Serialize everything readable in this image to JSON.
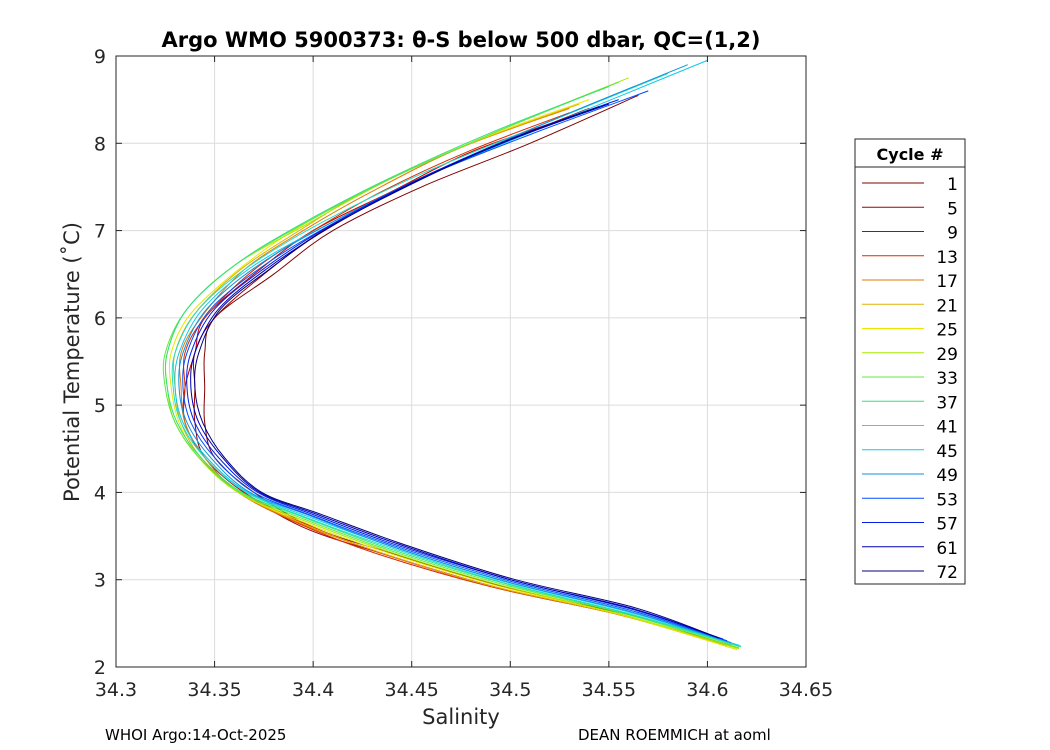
{
  "chart_data": {
    "type": "line",
    "title": "Argo WMO 5900373: θ-S below 500 dbar,  QC=(1,2)",
    "xlabel": "Salinity",
    "ylabel": "Potential Temperature (˚C)",
    "xlim": [
      34.3,
      34.65
    ],
    "ylim": [
      2,
      9
    ],
    "xticks": [
      34.3,
      34.35,
      34.4,
      34.45,
      34.5,
      34.55,
      34.6,
      34.65
    ],
    "xtick_labels": [
      "34.3",
      "34.35",
      "34.4",
      "34.45",
      "34.5",
      "34.55",
      "34.6",
      "34.65"
    ],
    "yticks": [
      2,
      3,
      4,
      5,
      6,
      7,
      8,
      9
    ],
    "ytick_labels": [
      "2",
      "3",
      "4",
      "5",
      "6",
      "7",
      "8",
      "9"
    ],
    "grid": true,
    "legend_title": "Cycle #",
    "legend_placement": "right",
    "series": [
      {
        "name": "1",
        "color": "#800000",
        "points": [
          [
            34.565,
            8.55
          ],
          [
            34.51,
            8.0
          ],
          [
            34.455,
            7.5
          ],
          [
            34.41,
            7.0
          ],
          [
            34.38,
            6.5
          ],
          [
            34.35,
            6.0
          ],
          [
            34.345,
            5.6
          ],
          [
            34.345,
            5.2
          ],
          [
            34.345,
            4.8
          ],
          [
            34.35,
            4.4
          ],
          [
            34.37,
            4.0
          ],
          [
            34.4,
            3.6
          ],
          [
            34.44,
            3.3
          ],
          [
            34.5,
            2.9
          ],
          [
            34.56,
            2.6
          ],
          [
            34.61,
            2.3
          ]
        ]
      },
      {
        "name": "5",
        "color": "#9e0000",
        "points": [
          [
            34.54,
            8.4
          ],
          [
            34.49,
            7.95
          ],
          [
            34.445,
            7.5
          ],
          [
            34.405,
            7.0
          ],
          [
            34.375,
            6.5
          ],
          [
            34.35,
            6.0
          ],
          [
            34.34,
            5.6
          ],
          [
            34.34,
            5.2
          ],
          [
            34.34,
            4.8
          ],
          [
            34.345,
            4.4
          ],
          [
            34.365,
            4.0
          ],
          [
            34.395,
            3.6
          ],
          [
            34.435,
            3.3
          ],
          [
            34.495,
            2.9
          ],
          [
            34.555,
            2.6
          ],
          [
            34.612,
            2.25
          ]
        ]
      },
      {
        "name": "9",
        "color": "#c40000",
        "points": [
          [
            34.53,
            8.3
          ],
          [
            34.48,
            7.9
          ],
          [
            34.44,
            7.45
          ],
          [
            34.4,
            7.0
          ],
          [
            34.37,
            6.5
          ],
          [
            34.345,
            6.0
          ],
          [
            34.34,
            5.6
          ],
          [
            34.335,
            5.2
          ],
          [
            34.335,
            4.8
          ],
          [
            34.345,
            4.4
          ],
          [
            34.365,
            4.0
          ],
          [
            34.395,
            3.65
          ],
          [
            34.435,
            3.3
          ],
          [
            34.495,
            2.9
          ],
          [
            34.555,
            2.6
          ],
          [
            34.61,
            2.25
          ]
        ]
      },
      {
        "name": "13",
        "color": "#dc2a00",
        "points": [
          [
            34.53,
            8.35
          ],
          [
            34.48,
            7.92
          ],
          [
            34.435,
            7.45
          ],
          [
            34.4,
            7.0
          ],
          [
            34.37,
            6.55
          ],
          [
            34.345,
            6.0
          ],
          [
            34.335,
            5.6
          ],
          [
            34.335,
            5.2
          ],
          [
            34.335,
            4.8
          ],
          [
            34.345,
            4.4
          ],
          [
            34.362,
            4.0
          ],
          [
            34.392,
            3.65
          ],
          [
            34.432,
            3.3
          ],
          [
            34.49,
            2.92
          ],
          [
            34.555,
            2.6
          ],
          [
            34.612,
            2.24
          ]
        ]
      },
      {
        "name": "17",
        "color": "#e07a00",
        "points": [
          [
            34.53,
            8.4
          ],
          [
            34.475,
            7.95
          ],
          [
            34.43,
            7.45
          ],
          [
            34.395,
            7.0
          ],
          [
            34.365,
            6.55
          ],
          [
            34.343,
            6.0
          ],
          [
            34.333,
            5.6
          ],
          [
            34.333,
            5.2
          ],
          [
            34.335,
            4.8
          ],
          [
            34.345,
            4.4
          ],
          [
            34.362,
            4.0
          ],
          [
            34.393,
            3.65
          ],
          [
            34.433,
            3.32
          ],
          [
            34.49,
            2.93
          ],
          [
            34.555,
            2.6
          ],
          [
            34.615,
            2.22
          ]
        ]
      },
      {
        "name": "21",
        "color": "#e0b000",
        "points": [
          [
            34.535,
            8.45
          ],
          [
            34.48,
            8.0
          ],
          [
            34.43,
            7.5
          ],
          [
            34.393,
            7.0
          ],
          [
            34.363,
            6.55
          ],
          [
            34.34,
            6.05
          ],
          [
            34.33,
            5.6
          ],
          [
            34.33,
            5.2
          ],
          [
            34.333,
            4.8
          ],
          [
            34.343,
            4.4
          ],
          [
            34.362,
            4.0
          ],
          [
            34.393,
            3.66
          ],
          [
            34.433,
            3.32
          ],
          [
            34.49,
            2.93
          ],
          [
            34.555,
            2.6
          ],
          [
            34.615,
            2.2
          ]
        ]
      },
      {
        "name": "25",
        "color": "#e8e800",
        "points": [
          [
            34.54,
            8.5
          ],
          [
            34.485,
            8.05
          ],
          [
            34.43,
            7.5
          ],
          [
            34.39,
            7.0
          ],
          [
            34.362,
            6.55
          ],
          [
            34.338,
            6.05
          ],
          [
            34.328,
            5.6
          ],
          [
            34.328,
            5.2
          ],
          [
            34.332,
            4.8
          ],
          [
            34.342,
            4.4
          ],
          [
            34.362,
            4.0
          ],
          [
            34.394,
            3.67
          ],
          [
            34.435,
            3.33
          ],
          [
            34.492,
            2.94
          ],
          [
            34.556,
            2.6
          ],
          [
            34.615,
            2.2
          ]
        ]
      },
      {
        "name": "29",
        "color": "#a8e800",
        "points": [
          [
            34.56,
            8.75
          ],
          [
            34.5,
            8.2
          ],
          [
            34.44,
            7.6
          ],
          [
            34.395,
            7.05
          ],
          [
            34.36,
            6.6
          ],
          [
            34.336,
            6.1
          ],
          [
            34.326,
            5.6
          ],
          [
            34.326,
            5.2
          ],
          [
            34.33,
            4.8
          ],
          [
            34.342,
            4.4
          ],
          [
            34.362,
            4.0
          ],
          [
            34.395,
            3.68
          ],
          [
            34.436,
            3.34
          ],
          [
            34.493,
            2.95
          ],
          [
            34.557,
            2.6
          ],
          [
            34.616,
            2.21
          ]
        ]
      },
      {
        "name": "33",
        "color": "#60e840",
        "points": [
          [
            34.555,
            8.7
          ],
          [
            34.495,
            8.15
          ],
          [
            34.438,
            7.58
          ],
          [
            34.393,
            7.05
          ],
          [
            34.36,
            6.6
          ],
          [
            34.336,
            6.1
          ],
          [
            34.325,
            5.6
          ],
          [
            34.325,
            5.2
          ],
          [
            34.33,
            4.8
          ],
          [
            34.342,
            4.4
          ],
          [
            34.363,
            4.0
          ],
          [
            34.396,
            3.69
          ],
          [
            34.437,
            3.35
          ],
          [
            34.494,
            2.96
          ],
          [
            34.558,
            2.61
          ],
          [
            34.616,
            2.22
          ]
        ]
      },
      {
        "name": "37",
        "color": "#30e080",
        "points": [
          [
            34.55,
            8.65
          ],
          [
            34.49,
            8.12
          ],
          [
            34.436,
            7.57
          ],
          [
            34.392,
            7.05
          ],
          [
            34.36,
            6.6
          ],
          [
            34.336,
            6.1
          ],
          [
            34.326,
            5.6
          ],
          [
            34.326,
            5.2
          ],
          [
            34.331,
            4.8
          ],
          [
            34.343,
            4.4
          ],
          [
            34.364,
            4.0
          ],
          [
            34.397,
            3.7
          ],
          [
            34.438,
            3.36
          ],
          [
            34.495,
            2.97
          ],
          [
            34.558,
            2.62
          ],
          [
            34.617,
            2.23
          ]
        ]
      },
      {
        "name": "41",
        "color": "#20e0c0",
        "points": [
          [
            34.58,
            8.8
          ],
          [
            34.52,
            8.25
          ],
          [
            34.455,
            7.65
          ],
          [
            34.405,
            7.1
          ],
          [
            34.368,
            6.6
          ],
          [
            34.342,
            6.1
          ],
          [
            34.33,
            5.6
          ],
          [
            34.329,
            5.2
          ],
          [
            34.333,
            4.8
          ],
          [
            34.345,
            4.4
          ],
          [
            34.366,
            4.0
          ],
          [
            34.398,
            3.7
          ],
          [
            34.439,
            3.37
          ],
          [
            34.496,
            2.97
          ],
          [
            34.559,
            2.62
          ],
          [
            34.617,
            2.24
          ]
        ]
      },
      {
        "name": "45",
        "color": "#10c8e8",
        "points": [
          [
            34.6,
            8.95
          ],
          [
            34.535,
            8.35
          ],
          [
            34.465,
            7.7
          ],
          [
            34.41,
            7.1
          ],
          [
            34.37,
            6.6
          ],
          [
            34.344,
            6.1
          ],
          [
            34.332,
            5.6
          ],
          [
            34.33,
            5.2
          ],
          [
            34.334,
            4.8
          ],
          [
            34.346,
            4.4
          ],
          [
            34.367,
            4.0
          ],
          [
            34.399,
            3.71
          ],
          [
            34.44,
            3.38
          ],
          [
            34.497,
            2.98
          ],
          [
            34.56,
            2.63
          ],
          [
            34.616,
            2.25
          ]
        ]
      },
      {
        "name": "49",
        "color": "#1090e0",
        "points": [
          [
            34.59,
            8.9
          ],
          [
            34.525,
            8.3
          ],
          [
            34.462,
            7.68
          ],
          [
            34.41,
            7.1
          ],
          [
            34.372,
            6.6
          ],
          [
            34.346,
            6.1
          ],
          [
            34.334,
            5.6
          ],
          [
            34.332,
            5.2
          ],
          [
            34.336,
            4.8
          ],
          [
            34.348,
            4.4
          ],
          [
            34.368,
            4.0
          ],
          [
            34.4,
            3.72
          ],
          [
            34.44,
            3.38
          ],
          [
            34.498,
            2.98
          ],
          [
            34.56,
            2.64
          ],
          [
            34.612,
            2.28
          ]
        ]
      },
      {
        "name": "53",
        "color": "#0050ff",
        "points": [
          [
            34.57,
            8.6
          ],
          [
            34.51,
            8.1
          ],
          [
            34.455,
            7.6
          ],
          [
            34.41,
            7.08
          ],
          [
            34.375,
            6.6
          ],
          [
            34.348,
            6.1
          ],
          [
            34.336,
            5.6
          ],
          [
            34.334,
            5.2
          ],
          [
            34.338,
            4.8
          ],
          [
            34.35,
            4.4
          ],
          [
            34.37,
            4.0
          ],
          [
            34.401,
            3.72
          ],
          [
            34.441,
            3.39
          ],
          [
            34.499,
            2.99
          ],
          [
            34.561,
            2.65
          ],
          [
            34.61,
            2.3
          ]
        ]
      },
      {
        "name": "57",
        "color": "#0020e8",
        "points": [
          [
            34.555,
            8.5
          ],
          [
            34.5,
            8.05
          ],
          [
            34.45,
            7.55
          ],
          [
            34.408,
            7.05
          ],
          [
            34.376,
            6.58
          ],
          [
            34.35,
            6.1
          ],
          [
            34.338,
            5.6
          ],
          [
            34.336,
            5.2
          ],
          [
            34.34,
            4.8
          ],
          [
            34.352,
            4.4
          ],
          [
            34.372,
            4.0
          ],
          [
            34.402,
            3.73
          ],
          [
            34.442,
            3.4
          ],
          [
            34.5,
            3.0
          ],
          [
            34.562,
            2.66
          ],
          [
            34.608,
            2.32
          ]
        ]
      },
      {
        "name": "61",
        "color": "#0000b8",
        "points": [
          [
            34.55,
            8.45
          ],
          [
            34.498,
            8.02
          ],
          [
            34.448,
            7.52
          ],
          [
            34.408,
            7.03
          ],
          [
            34.377,
            6.57
          ],
          [
            34.352,
            6.1
          ],
          [
            34.34,
            5.6
          ],
          [
            34.338,
            5.2
          ],
          [
            34.342,
            4.8
          ],
          [
            34.354,
            4.4
          ],
          [
            34.373,
            4.0
          ],
          [
            34.403,
            3.74
          ],
          [
            34.443,
            3.41
          ],
          [
            34.5,
            3.0
          ],
          [
            34.562,
            2.67
          ],
          [
            34.606,
            2.33
          ]
        ]
      },
      {
        "name": "72",
        "color": "#000080",
        "points": [
          [
            34.545,
            8.42
          ],
          [
            34.495,
            8.0
          ],
          [
            34.447,
            7.5
          ],
          [
            34.407,
            7.02
          ],
          [
            34.378,
            6.56
          ],
          [
            34.353,
            6.1
          ],
          [
            34.342,
            5.6
          ],
          [
            34.34,
            5.2
          ],
          [
            34.344,
            4.8
          ],
          [
            34.355,
            4.4
          ],
          [
            34.374,
            4.0
          ],
          [
            34.404,
            3.75
          ],
          [
            34.444,
            3.42
          ],
          [
            34.501,
            3.01
          ],
          [
            34.563,
            2.68
          ],
          [
            34.605,
            2.34
          ]
        ]
      }
    ]
  },
  "footer": {
    "left": "WHOI Argo:14-Oct-2025",
    "right": "DEAN ROEMMICH at aoml"
  }
}
